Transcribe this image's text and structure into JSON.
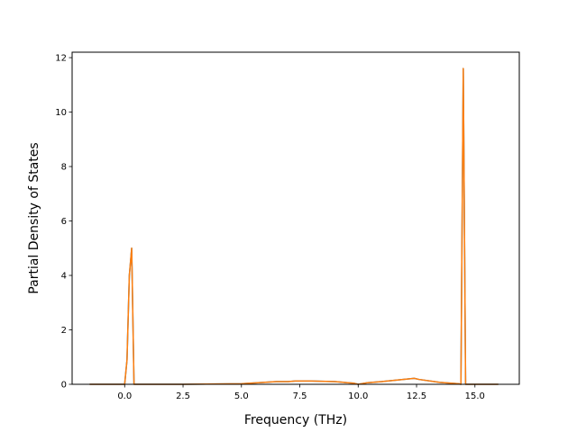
{
  "chart_data": {
    "type": "line",
    "title": "",
    "xlabel": "Frequency (THz)",
    "ylabel": "Partial Density of States",
    "xlim": [
      -2.25,
      16.9
    ],
    "ylim": [
      0,
      12.2
    ],
    "x_ticks": [
      0.0,
      2.5,
      5.0,
      7.5,
      10.0,
      12.5,
      15.0
    ],
    "x_tick_labels": [
      "0.0",
      "2.5",
      "5.0",
      "7.5",
      "10.0",
      "12.5",
      "15.0"
    ],
    "y_ticks": [
      0,
      2,
      4,
      6,
      8,
      10,
      12
    ],
    "y_tick_labels": [
      "0",
      "2",
      "4",
      "6",
      "8",
      "10",
      "12"
    ],
    "grid": false,
    "legend": "none",
    "series": [
      {
        "color": "#1f77b4",
        "x": [
          -1.5,
          0.0,
          0.1,
          0.2,
          0.3,
          0.4,
          2.5,
          5.0,
          6.5,
          7.0,
          7.3,
          8.0,
          9.0,
          9.8,
          10.0,
          10.4,
          11.0,
          12.4,
          12.6,
          13.5,
          14.3,
          14.4,
          14.5,
          14.6,
          16.0
        ],
        "y": [
          0.0,
          0.0,
          0.9,
          4.0,
          5.0,
          0.0,
          0.0,
          0.02,
          0.1,
          0.1,
          0.12,
          0.12,
          0.1,
          0.04,
          0.0,
          0.06,
          0.1,
          0.22,
          0.18,
          0.07,
          0.02,
          0.0,
          11.6,
          0.0,
          0.0
        ]
      },
      {
        "color": "#ff7f0e",
        "x": [
          -1.5,
          0.0,
          0.1,
          0.2,
          0.3,
          0.4,
          2.5,
          5.0,
          6.5,
          7.0,
          7.3,
          8.0,
          9.0,
          9.8,
          10.0,
          10.4,
          11.0,
          12.4,
          12.6,
          13.5,
          14.3,
          14.4,
          14.5,
          14.6,
          16.0
        ],
        "y": [
          0.0,
          0.0,
          0.9,
          4.0,
          5.0,
          0.0,
          0.0,
          0.02,
          0.1,
          0.1,
          0.12,
          0.12,
          0.1,
          0.04,
          0.0,
          0.06,
          0.1,
          0.22,
          0.18,
          0.07,
          0.02,
          0.0,
          11.6,
          0.0,
          0.0
        ]
      }
    ]
  }
}
